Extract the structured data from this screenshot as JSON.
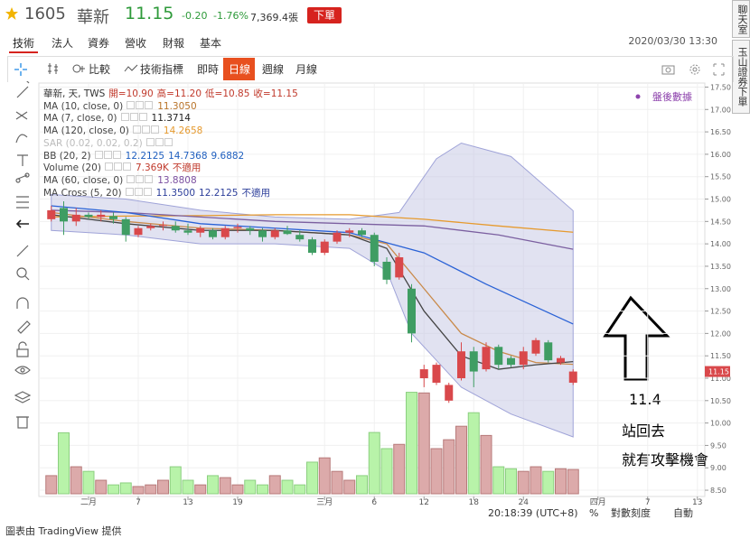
{
  "header": {
    "code": "1605",
    "name": "華新",
    "price": "11.15",
    "change": "-0.20",
    "change_pct": "-1.76%",
    "volume": "7,369.4張",
    "order_button": "下單",
    "datetime": "2020/03/30 13:30"
  },
  "tabs": [
    "技術",
    "法人",
    "資券",
    "營收",
    "財報",
    "基本"
  ],
  "side_tabs": [
    "聊天室",
    "玉山證券下單"
  ],
  "toolbar": {
    "compare": "比較",
    "indicators": "技術指標",
    "intervals": [
      "即時",
      "日線",
      "週線",
      "月線"
    ]
  },
  "legend": {
    "symbol": "華新, 天, TWS",
    "ohlc": [
      "開=10.90",
      "高=11.20",
      "低=10.85",
      "收=11.15"
    ],
    "indicators": [
      {
        "label": "MA (10, close, 0)",
        "values": [
          "11.3050"
        ],
        "color": "#b9742a"
      },
      {
        "label": "MA (7, close, 0)",
        "values": [
          "11.3714"
        ],
        "color": "#222222"
      },
      {
        "label": "MA (120, close, 0)",
        "values": [
          "14.2658"
        ],
        "color": "#e69a2e"
      },
      {
        "label": "SAR (0.02, 0.02, 0.2)",
        "values": [],
        "color": "#bbbbbb"
      },
      {
        "label": "BB (20, 2)",
        "values": [
          "12.2125",
          "14.7368",
          "9.6882"
        ],
        "color": "#1f5fbf"
      },
      {
        "label": "Volume (20)",
        "values": [
          "7.369K",
          "不適用"
        ],
        "color": "#c0392b"
      },
      {
        "label": "MA (60, close, 0)",
        "values": [
          "13.8808"
        ],
        "color": "#7b4fa0"
      },
      {
        "label": "MA Cross (5, 20)",
        "values": [
          "11.3500",
          "12.2125",
          "不適用"
        ],
        "color": "#2c3e9a"
      }
    ],
    "after_hours": "盤後數據"
  },
  "annotations": [
    "11.4",
    "站回去",
    "就有攻擊機會"
  ],
  "status": {
    "time": "20:18:39 (UTC+8)",
    "percent": "%",
    "log": "對數刻度",
    "auto": "自動"
  },
  "footer": "圖表由 TradingView 提供",
  "chart_data": {
    "type": "candlestick",
    "xlim": [
      -1,
      52.6
    ],
    "ylim": [
      8.36,
      17.59
    ],
    "xticks": [
      {
        "value": 3,
        "label": "二月"
      },
      7,
      {
        "value": 11,
        "label": "13"
      },
      {
        "value": 15,
        "label": "19"
      },
      {
        "value": 22,
        "label": "三月"
      },
      {
        "value": 26,
        "label": "6"
      },
      {
        "value": 30,
        "label": "12"
      },
      {
        "value": 34,
        "label": "18"
      },
      {
        "value": 38,
        "label": "24"
      },
      {
        "value": 44,
        "label": "四月"
      },
      {
        "value": 48,
        "label": "7"
      },
      {
        "value": 52,
        "label": "13"
      }
    ],
    "yticks": [
      {
        "value": 8.5,
        "label": "8.50"
      },
      {
        "value": 9,
        "label": "9.00"
      },
      {
        "value": 9.5,
        "label": "9.50"
      },
      {
        "value": 10,
        "label": "10.00"
      },
      {
        "value": 10.5,
        "label": "10.50"
      },
      {
        "value": 11,
        "label": "11.00"
      },
      {
        "value": 11.5,
        "label": "11.50"
      },
      {
        "value": 12,
        "label": "12.00"
      },
      {
        "value": 12.5,
        "label": "12.50"
      },
      {
        "value": 13,
        "label": "13.00"
      },
      {
        "value": 13.5,
        "label": "13.50"
      },
      {
        "value": 14,
        "label": "14.00"
      },
      {
        "value": 14.5,
        "label": "14.50"
      },
      {
        "value": 15,
        "label": "15.00"
      },
      {
        "value": 15.5,
        "label": "15.50"
      },
      {
        "value": 16,
        "label": "16.00"
      },
      {
        "value": 16.5,
        "label": "16.50"
      },
      {
        "value": 17,
        "label": "17.00"
      },
      {
        "value": 17.5,
        "label": "17.50"
      }
    ],
    "grid": true,
    "up_color": "#d9484b",
    "down_color": "#3f9d63",
    "open": [
      14.55,
      14.8,
      14.5,
      14.65,
      14.6,
      14.62,
      14.55,
      14.2,
      14.35,
      14.4,
      14.4,
      14.3,
      14.25,
      14.3,
      14.15,
      14.35,
      14.35,
      14.3,
      14.15,
      14.3,
      14.2,
      14.1,
      13.8,
      14.05,
      14.25,
      14.3,
      14.2,
      13.6,
      13.25,
      13.0,
      11.0,
      10.9,
      10.5,
      11.0,
      11.6,
      11.2,
      11.7,
      11.45,
      11.3,
      11.55,
      11.8,
      11.35,
      10.9
    ],
    "high": [
      14.85,
      14.95,
      14.8,
      14.7,
      14.75,
      14.7,
      14.6,
      14.4,
      14.45,
      14.5,
      14.5,
      14.45,
      14.4,
      14.35,
      14.4,
      14.45,
      14.4,
      14.35,
      14.35,
      14.4,
      14.3,
      14.15,
      14.1,
      14.3,
      14.35,
      14.35,
      14.25,
      13.7,
      13.8,
      13.1,
      11.3,
      11.35,
      10.9,
      11.8,
      11.7,
      11.8,
      11.75,
      11.5,
      11.7,
      11.9,
      11.85,
      11.5,
      11.2
    ],
    "low": [
      14.5,
      14.2,
      14.4,
      14.55,
      14.5,
      14.45,
      14.05,
      14.15,
      14.3,
      14.3,
      14.25,
      14.2,
      14.15,
      14.1,
      14.1,
      14.25,
      14.2,
      14.05,
      14.1,
      14.2,
      14.05,
      13.75,
      13.75,
      14.0,
      14.15,
      14.15,
      13.5,
      13.1,
      13.2,
      11.8,
      10.8,
      10.85,
      10.45,
      10.95,
      10.8,
      11.15,
      11.2,
      11.25,
      11.2,
      11.5,
      11.35,
      11.3,
      10.85
    ],
    "close": [
      14.75,
      14.5,
      14.65,
      14.6,
      14.65,
      14.55,
      14.2,
      14.35,
      14.4,
      14.42,
      14.3,
      14.25,
      14.35,
      14.15,
      14.35,
      14.38,
      14.3,
      14.15,
      14.3,
      14.22,
      14.1,
      13.8,
      14.05,
      14.25,
      14.3,
      14.2,
      13.6,
      13.2,
      13.7,
      12.0,
      11.2,
      11.3,
      10.85,
      11.6,
      11.15,
      11.7,
      11.3,
      11.3,
      11.6,
      11.85,
      11.4,
      11.45,
      11.15
    ],
    "volume": [
      5500,
      18500,
      8200,
      6800,
      4100,
      2700,
      3300,
      2200,
      2700,
      4100,
      8200,
      4100,
      2700,
      5500,
      4900,
      2700,
      4100,
      2700,
      5500,
      4100,
      2700,
      9600,
      10900,
      6800,
      4100,
      5500,
      18600,
      13700,
      15000,
      30800,
      30600,
      13700,
      16400,
      20500,
      24600,
      17700,
      8200,
      7600,
      6800,
      8200,
      6800,
      7600,
      7369
    ],
    "volume_lim": [
      0,
      40000
    ],
    "bb_band": {
      "color": "#c9cbe6",
      "x_upper": [
        0,
        6,
        12,
        18,
        24,
        28,
        31,
        33,
        37,
        42
      ],
      "upper": [
        15.1,
        15.0,
        14.75,
        14.6,
        14.55,
        14.7,
        15.9,
        16.25,
        15.95,
        14.74
      ],
      "x_lower": [
        0,
        6,
        12,
        18,
        24,
        27,
        29,
        33,
        37,
        42
      ],
      "lower": [
        14.3,
        14.2,
        14.0,
        14.0,
        13.9,
        13.4,
        12.0,
        10.8,
        10.2,
        9.69
      ]
    },
    "lines": [
      {
        "color": "#e69a2e",
        "x": [
          0,
          6,
          12,
          18,
          24,
          30,
          36,
          42
        ],
        "y": [
          14.6,
          14.62,
          14.63,
          14.65,
          14.65,
          14.55,
          14.4,
          14.26
        ]
      },
      {
        "color": "#7b5fa0",
        "x": [
          0,
          6,
          12,
          18,
          24,
          30,
          36,
          42
        ],
        "y": [
          14.75,
          14.7,
          14.6,
          14.5,
          14.45,
          14.4,
          14.2,
          13.88
        ]
      },
      {
        "color": "#2a62d6",
        "x": [
          0,
          6,
          12,
          18,
          24,
          30,
          35,
          42
        ],
        "y": [
          14.85,
          14.7,
          14.45,
          14.35,
          14.25,
          13.8,
          13.1,
          12.21
        ]
      },
      {
        "color": "#c98a4a",
        "x": [
          0,
          6,
          12,
          18,
          24,
          27,
          30,
          33,
          36,
          39,
          42
        ],
        "y": [
          14.7,
          14.5,
          14.35,
          14.3,
          14.2,
          14.0,
          13.0,
          12.0,
          11.6,
          11.35,
          11.31
        ]
      },
      {
        "color": "#444444",
        "x": [
          0,
          6,
          12,
          18,
          24,
          27,
          30,
          33,
          36,
          39,
          42
        ],
        "y": [
          14.65,
          14.45,
          14.3,
          14.3,
          14.2,
          13.9,
          12.5,
          11.5,
          11.2,
          11.3,
          11.37
        ]
      }
    ]
  }
}
